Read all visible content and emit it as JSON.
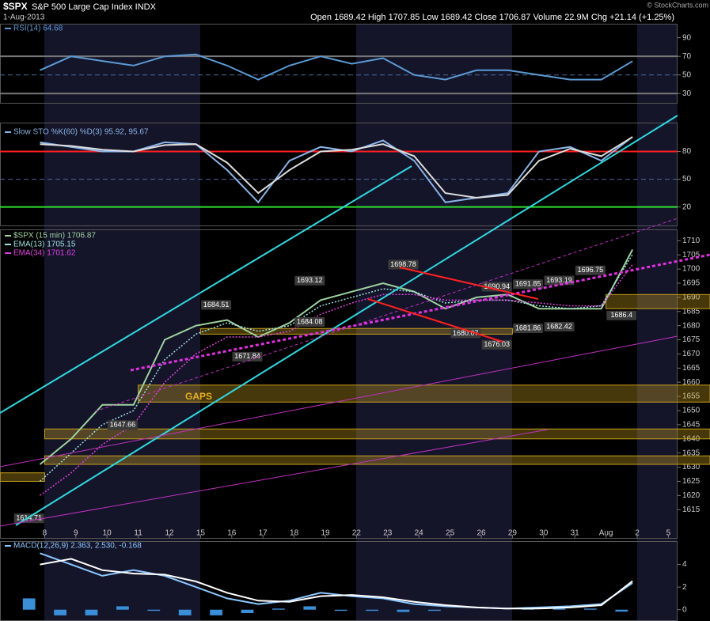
{
  "header": {
    "symbol": "$SPX",
    "name": "S&P 500 Large Cap Index INDX",
    "date": "1-Aug-2013",
    "quote": "Open 1689.42  High 1707.85  Low 1689.42  Close 1706.87  Volume 22.9M  Chg +21.14 (+1.25%)",
    "copyright": "© StockCharts.com"
  },
  "chart_data": [
    {
      "type": "line",
      "series": [
        {
          "name": "RSI(14) 64.68",
          "color": "#5b9bd5",
          "values": [
            55,
            70,
            65,
            60,
            70,
            72,
            60,
            45,
            60,
            70,
            62,
            68,
            50,
            45,
            55,
            55,
            50,
            45,
            45,
            64.68,
            null,
            null
          ]
        }
      ],
      "ylim": [
        20,
        105
      ],
      "yticks": [
        30,
        50,
        70,
        90
      ],
      "hlines": [
        {
          "value": 70,
          "color": "#777777"
        },
        {
          "value": 30,
          "color": "#777777"
        },
        {
          "value": 50,
          "color": "#4a6a9a",
          "dash": true
        }
      ]
    },
    {
      "type": "line",
      "series": [
        {
          "name": "Slow STO %K(60) %D(3) 95.92, 95.67",
          "color": "#8ab4e8",
          "values": [
            90,
            85,
            80,
            80,
            90,
            88,
            60,
            25,
            70,
            85,
            80,
            92,
            70,
            25,
            30,
            35,
            80,
            85,
            70,
            95.92,
            null,
            null
          ]
        },
        {
          "color": "#dddddd",
          "values": [
            88,
            86,
            82,
            80,
            87,
            88,
            68,
            35,
            60,
            80,
            82,
            88,
            75,
            35,
            30,
            33,
            70,
            83,
            75,
            95.67,
            null,
            null
          ]
        }
      ],
      "ylim": [
        0,
        107
      ],
      "yticks": [
        20,
        50,
        80
      ],
      "hlines": [
        {
          "value": 80,
          "color": "#ff2020"
        },
        {
          "value": 20,
          "color": "#30e030"
        },
        {
          "value": 50,
          "color": "#4a6a9a",
          "dash": true
        }
      ]
    },
    {
      "type": "line",
      "categories": [
        null,
        "8",
        "9",
        "10",
        "11",
        "12",
        "15",
        "16",
        "17",
        "18",
        "19",
        "22",
        "23",
        "24",
        "25",
        "26",
        "29",
        "30",
        "31",
        "Aug",
        "2",
        "5"
      ],
      "series": [
        {
          "name": "$SPX (15 min) 1706.87",
          "color": "#9fd39f",
          "values": [
            1631,
            1640,
            1652,
            1652,
            1675,
            1680,
            1682,
            1676,
            1681,
            1689,
            1692,
            1695,
            1692,
            1686,
            1690,
            1691,
            1686,
            1686,
            1686,
            1706.87,
            null,
            null
          ]
        },
        {
          "name": "EMA(13) 1705.15",
          "color": "#9fe0e0",
          "dash": true,
          "values": [
            1625,
            1635,
            1645,
            1650,
            1668,
            1677,
            1681,
            1678,
            1680,
            1687,
            1690,
            1693,
            1692,
            1688,
            1689,
            1689,
            1687,
            1686,
            1687,
            1705.15,
            null,
            null
          ]
        },
        {
          "name": "EMA(34) 1701.62",
          "color": "#e040e0",
          "dash": true,
          "values": [
            1620,
            1628,
            1638,
            1645,
            1660,
            1670,
            1676,
            1676,
            1678,
            1684,
            1688,
            1691,
            1691,
            1689,
            1689,
            1689,
            1688,
            1687,
            1687,
            1701.62,
            null,
            null
          ]
        }
      ],
      "ylim": [
        1605,
        1714
      ],
      "yticks": [
        1615,
        1620,
        1625,
        1630,
        1635,
        1640,
        1645,
        1650,
        1655,
        1660,
        1665,
        1670,
        1675,
        1680,
        1685,
        1690,
        1695,
        1700,
        1705,
        1710
      ],
      "zones": [
        {
          "from": null,
          "to": "8",
          "range": [
            1625,
            1628
          ]
        },
        {
          "from": "8",
          "range": [
            1631,
            1634
          ]
        },
        {
          "from": "8",
          "range": [
            1640,
            1643.5
          ]
        },
        {
          "from": "11",
          "range": [
            1653,
            1659
          ]
        },
        {
          "from": "15",
          "to": "29",
          "range": [
            1677,
            1679
          ]
        },
        {
          "from": "Aug",
          "range": [
            1686,
            1691
          ]
        }
      ],
      "zone_color": "#c8a020",
      "gap_label": "GAPS",
      "annotations": [
        {
          "category": null,
          "value": 1614.71,
          "side": "below"
        },
        {
          "category": "10",
          "value": 1647.66,
          "side": "below"
        },
        {
          "category": "15",
          "value": 1684.51,
          "side": "above"
        },
        {
          "category": "16",
          "value": 1671.84,
          "side": "below"
        },
        {
          "category": "18",
          "value": 1693.12,
          "side": "above"
        },
        {
          "category": "18",
          "value": 1684.08,
          "side": "below"
        },
        {
          "category": "23",
          "value": 1698.78,
          "side": "above"
        },
        {
          "category": "25",
          "value": 1680.07,
          "side": "below"
        },
        {
          "category": "26",
          "value": 1690.94,
          "side": "above"
        },
        {
          "category": "26",
          "value": 1676.03,
          "side": "below"
        },
        {
          "category": "29",
          "value": 1681.86,
          "side": "below"
        },
        {
          "category": "29",
          "value": 1691.85,
          "side": "above"
        },
        {
          "category": "30",
          "value": 1693.19,
          "side": "above"
        },
        {
          "category": "30",
          "value": 1682.42,
          "side": "below"
        },
        {
          "category": "31",
          "value": 1696.75,
          "side": "above"
        },
        {
          "category": "Aug",
          "value": 1686.4,
          "side": "below"
        }
      ]
    },
    {
      "type": "line",
      "series": [
        {
          "name": "MACD(12,26,9) 2.363, 2.530, -0.168",
          "color": "#8cc8ff",
          "values": [
            5,
            4,
            3,
            3.5,
            3,
            2,
            1,
            0.5,
            0.8,
            1.5,
            1.2,
            1,
            0.5,
            0.3,
            0.2,
            0.1,
            0.2,
            0.3,
            0.5,
            2.363,
            null,
            null
          ]
        },
        {
          "color": "#ffffff",
          "values": [
            4,
            4.5,
            3.5,
            3.2,
            3.1,
            2.5,
            1.5,
            0.8,
            0.7,
            1.2,
            1.3,
            1.1,
            0.7,
            0.4,
            0.2,
            0.1,
            0.1,
            0.2,
            0.4,
            2.53,
            null,
            null
          ]
        }
      ],
      "histogram": {
        "color": "#3a8fd8",
        "values": [
          1,
          -0.5,
          -0.5,
          0.3,
          -0.1,
          -0.5,
          -0.5,
          -0.3,
          0.1,
          0.3,
          -0.1,
          -0.1,
          -0.2,
          -0.1,
          0,
          0,
          0.1,
          0.1,
          0.1,
          -0.168,
          null,
          null
        ]
      },
      "ylim": [
        -1,
        6
      ],
      "yticks": [
        0,
        2,
        4
      ]
    }
  ]
}
